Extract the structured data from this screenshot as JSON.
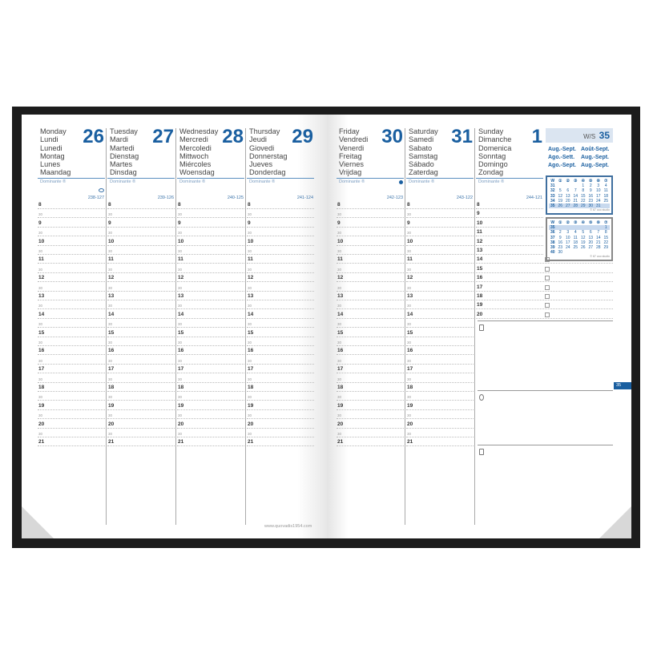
{
  "days": [
    {
      "names": [
        "Monday",
        "Lundi",
        "Lunedi",
        "Montag",
        "Lunes",
        "Maandag"
      ],
      "date": "26",
      "day_numbers": "238-127",
      "icon": "eye-icon"
    },
    {
      "names": [
        "Tuesday",
        "Mardi",
        "Martedi",
        "Dienstag",
        "Martes",
        "Dinsdag"
      ],
      "date": "27",
      "day_numbers": "239-126"
    },
    {
      "names": [
        "Wednesday",
        "Mercredi",
        "Mercoledi",
        "Mittwoch",
        "Miércoles",
        "Woensdag"
      ],
      "date": "28",
      "day_numbers": "240-125"
    },
    {
      "names": [
        "Thursday",
        "Jeudi",
        "Giovedi",
        "Donnerstag",
        "Jueves",
        "Donderdag"
      ],
      "date": "29",
      "day_numbers": "241-124"
    },
    {
      "names": [
        "Friday",
        "Vendredi",
        "Venerdi",
        "Freitag",
        "Viernes",
        "Vrijdag"
      ],
      "date": "30",
      "day_numbers": "242-123",
      "icon": "new-moon-icon"
    },
    {
      "names": [
        "Saturday",
        "Samedi",
        "Sabato",
        "Samstag",
        "Sábado",
        "Zaterdag"
      ],
      "date": "31",
      "day_numbers": "243-122"
    },
    {
      "names": [
        "Sunday",
        "Dimanche",
        "Domenica",
        "Sonntag",
        "Domingo",
        "Zondag"
      ],
      "date": "1",
      "day_numbers": "244-121"
    }
  ],
  "dominante_label": "Dominante ®",
  "half_label": "30",
  "hours": [
    "8",
    "9",
    "10",
    "11",
    "12",
    "13",
    "14",
    "15",
    "16",
    "17",
    "18",
    "19",
    "20",
    "21"
  ],
  "sunday_hours": [
    "8",
    "9",
    "10",
    "11",
    "12",
    "13",
    "14",
    "15",
    "16",
    "17",
    "18",
    "19",
    "20"
  ],
  "week": {
    "label": "W/S",
    "number": "35",
    "months": [
      "Aug.-Sept.",
      "Août-Sept.",
      "Ago.-Sett.",
      "Aug.-Sept.",
      "Ago.-Sept.",
      "Aug.-Sept."
    ]
  },
  "mini_calendars": [
    {
      "header": [
        "W",
        "①",
        "②",
        "③",
        "④",
        "⑤",
        "⑥",
        "⑦"
      ],
      "rows": [
        [
          "31",
          "",
          "",
          "",
          "1",
          "2",
          "3",
          "4"
        ],
        [
          "32",
          "5",
          "6",
          "7",
          "8",
          "9",
          "10",
          "11"
        ],
        [
          "33",
          "12",
          "13",
          "14",
          "15",
          "16",
          "17",
          "18"
        ],
        [
          "34",
          "19",
          "20",
          "21",
          "22",
          "23",
          "24",
          "25"
        ],
        [
          "35",
          "26",
          "27",
          "28",
          "29",
          "30",
          "31",
          ""
        ]
      ],
      "highlight": "35",
      "footer": "© 67 ooo studio"
    },
    {
      "header": [
        "W",
        "①",
        "②",
        "③",
        "④",
        "⑤",
        "⑥",
        "⑦"
      ],
      "rows": [
        [
          "35",
          "",
          "",
          "",
          "",
          "",
          "",
          "1"
        ],
        [
          "36",
          "2",
          "3",
          "4",
          "5",
          "6",
          "7",
          "8"
        ],
        [
          "37",
          "9",
          "10",
          "11",
          "12",
          "13",
          "14",
          "15"
        ],
        [
          "38",
          "16",
          "17",
          "18",
          "19",
          "20",
          "21",
          "22"
        ],
        [
          "39",
          "23",
          "24",
          "25",
          "26",
          "27",
          "28",
          "29"
        ],
        [
          "40",
          "30",
          "",
          "",
          "",
          "",
          "",
          ""
        ]
      ],
      "highlight": "35",
      "footer": "© 67 ooo studio"
    }
  ],
  "notes_icons": [
    "phone-icon",
    "at-icon",
    "note-icon"
  ],
  "week_tab": "35",
  "website": "www.quovadis1954.com",
  "colors": {
    "accent": "#1a5fa0",
    "cover": "#1c1c1c"
  }
}
